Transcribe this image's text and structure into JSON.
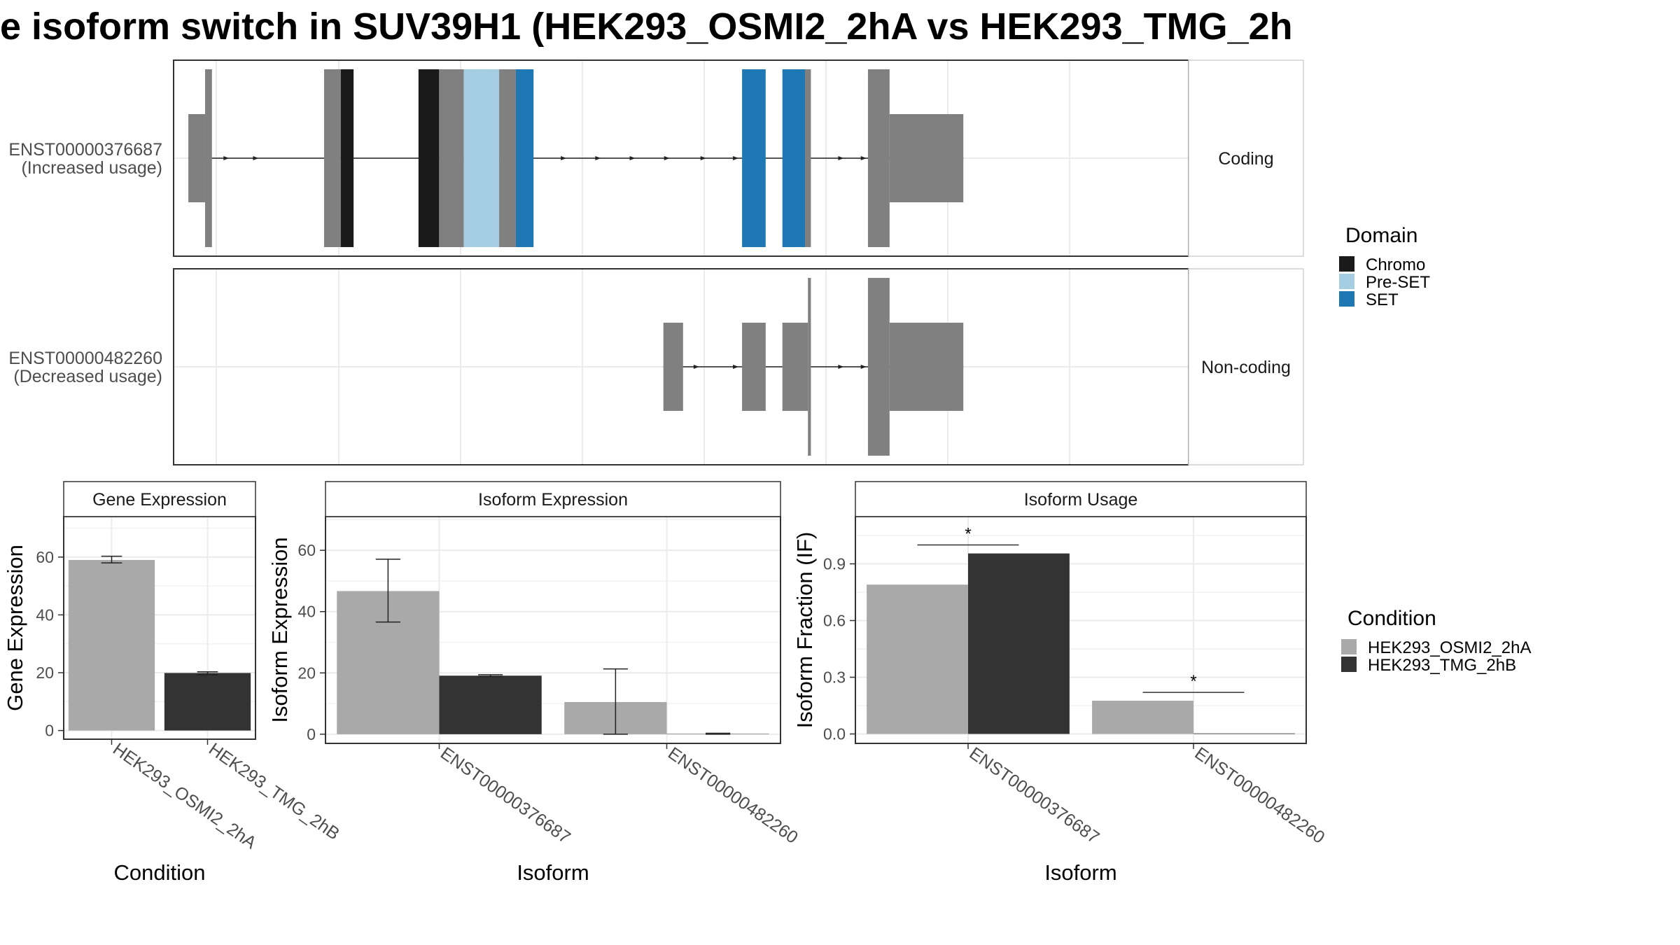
{
  "title": "e isoform switch in SUV39H1 (HEK293_OSMI2_2hA vs HEK293_TMG_2h",
  "colors": {
    "exon": "#808080",
    "chromo": "#1a1a1a",
    "preset": "#a6cee3",
    "set": "#1f78b4",
    "cond_a": "#a9a9a9",
    "cond_b": "#333333",
    "grid": "#ebebeb",
    "border": "#333333"
  },
  "transcripts": {
    "facet_labels": [
      "Coding",
      "Non-coding"
    ],
    "rows": [
      {
        "id": "ENST00000376687",
        "usage": "(Increased usage)",
        "facet": "Coding",
        "exons": [
          {
            "start": 1.5,
            "end": 3.2,
            "height": "thin"
          },
          {
            "start": 3.2,
            "end": 3.9,
            "height": "thick"
          },
          {
            "start": 15.3,
            "end": 17.0,
            "height": "thick"
          },
          {
            "start": 17.0,
            "end": 18.3,
            "height": "thick",
            "domain": "Chromo"
          },
          {
            "start": 24.9,
            "end": 27.0,
            "height": "thick",
            "domain": "Chromo"
          },
          {
            "start": 27.0,
            "end": 29.5,
            "height": "thick"
          },
          {
            "start": 29.5,
            "end": 33.1,
            "height": "thick",
            "domain": "Pre-SET"
          },
          {
            "start": 33.1,
            "end": 34.8,
            "height": "thick"
          },
          {
            "start": 34.8,
            "end": 36.6,
            "height": "thick",
            "domain": "SET"
          },
          {
            "start": 57.8,
            "end": 60.2,
            "height": "thick",
            "domain": "SET"
          },
          {
            "start": 61.9,
            "end": 64.2,
            "height": "thick",
            "domain": "SET"
          },
          {
            "start": 64.2,
            "end": 64.8,
            "height": "thick"
          },
          {
            "start": 70.6,
            "end": 72.8,
            "height": "thick"
          },
          {
            "start": 72.8,
            "end": 80.3,
            "height": "thin"
          }
        ],
        "arrows": [
          5.5,
          8.5,
          18.0,
          39.8,
          43.3,
          46.8,
          50.3,
          54.0,
          57.3,
          68.0,
          70.3
        ]
      },
      {
        "id": "ENST00000482260",
        "usage": "(Decreased usage)",
        "facet": "Non-coding",
        "exons": [
          {
            "start": 49.8,
            "end": 51.8,
            "height": "thin"
          },
          {
            "start": 57.8,
            "end": 60.2,
            "height": "thin"
          },
          {
            "start": 61.9,
            "end": 64.5,
            "height": "thin"
          },
          {
            "start": 64.5,
            "end": 64.8,
            "height": "thick"
          },
          {
            "start": 70.6,
            "end": 72.8,
            "height": "thick"
          },
          {
            "start": 72.8,
            "end": 80.3,
            "height": "thin"
          }
        ],
        "arrows": [
          53.3,
          57.3,
          68.0,
          70.3
        ]
      }
    ]
  },
  "domain_legend": {
    "title": "Domain",
    "items": [
      {
        "label": "Chromo",
        "color": "#1a1a1a"
      },
      {
        "label": "Pre-SET",
        "color": "#a6cee3"
      },
      {
        "label": "SET",
        "color": "#1f78b4"
      }
    ]
  },
  "condition_legend": {
    "title": "Condition",
    "items": [
      {
        "label": "HEK293_OSMI2_2hA",
        "color": "#a9a9a9"
      },
      {
        "label": "HEK293_TMG_2hB",
        "color": "#333333"
      }
    ]
  },
  "chart_data": [
    {
      "type": "bar",
      "title": "Gene Expression",
      "xlabel": "Condition",
      "ylabel": "Gene Expression",
      "categories": [
        "HEK293_OSMI2_2hA",
        "HEK293_TMG_2hB"
      ],
      "values": [
        59,
        19.9
      ],
      "errors": [
        [
          58.0,
          60.3
        ],
        [
          19.3,
          20.3
        ]
      ],
      "bar_colors": [
        "#a9a9a9",
        "#333333"
      ],
      "ylim": [
        -3,
        74
      ],
      "yticks": [
        0,
        20,
        40,
        60
      ]
    },
    {
      "type": "bar",
      "title": "Isoform Expression",
      "xlabel": "Isoform",
      "ylabel": "Isoform Expression",
      "categories": [
        "ENST00000376687",
        "ENST00000482260"
      ],
      "series": [
        {
          "name": "HEK293_OSMI2_2hA",
          "values": [
            46.7,
            10.5
          ],
          "errors": [
            [
              36.6,
              57.1
            ],
            [
              0,
              21.3
            ]
          ]
        },
        {
          "name": "HEK293_TMG_2hB",
          "values": [
            19.1,
            0.1
          ],
          "errors": [
            [
              18.8,
              19.4
            ],
            [
              0,
              0.3
            ]
          ]
        }
      ],
      "ylim": [
        -3,
        71
      ],
      "yticks": [
        0,
        20,
        40,
        60
      ]
    },
    {
      "type": "bar",
      "title": "Isoform Usage",
      "xlabel": "Isoform",
      "ylabel": "Isoform Fraction (IF)",
      "categories": [
        "ENST00000376687",
        "ENST00000482260"
      ],
      "series": [
        {
          "name": "HEK293_OSMI2_2hA",
          "values": [
            0.79,
            0.176
          ]
        },
        {
          "name": "HEK293_TMG_2hB",
          "values": [
            0.955,
            0.003
          ]
        }
      ],
      "significance": [
        {
          "category": "ENST00000376687",
          "label": "*",
          "y": 1.0
        },
        {
          "category": "ENST00000482260",
          "label": "*",
          "y": 0.22
        }
      ],
      "ylim": [
        -0.05,
        1.15
      ],
      "yticks": [
        0.0,
        0.3,
        0.6,
        0.9
      ],
      "ytick_labels": [
        "0.0",
        "0.3",
        "0.6",
        "0.9"
      ]
    }
  ]
}
